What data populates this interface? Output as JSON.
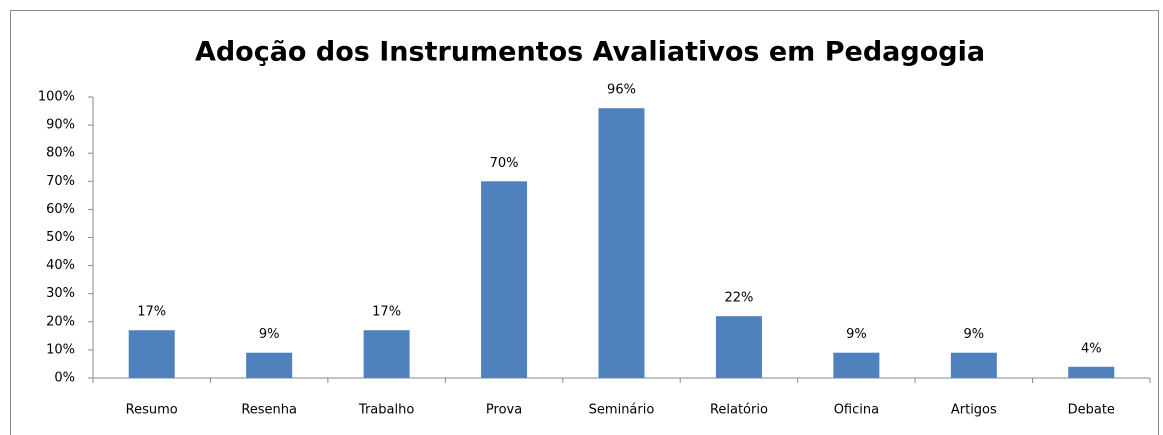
{
  "chart_data": {
    "type": "bar",
    "title": "Adoção dos Instrumentos Avaliativos em Pedagogia",
    "categories": [
      "Resumo",
      "Resenha",
      "Trabalho",
      "Prova",
      "Seminário",
      "Relatório",
      "Oficina",
      "Artigos",
      "Debate"
    ],
    "values": [
      17,
      9,
      17,
      70,
      96,
      22,
      9,
      9,
      4
    ],
    "value_labels": [
      "17%",
      "9%",
      "17%",
      "70%",
      "96%",
      "22%",
      "9%",
      "9%",
      "4%"
    ],
    "color": "#4f81bd",
    "ylim": [
      0,
      100
    ],
    "yticks": [
      {
        "value": 0,
        "label": "0%"
      },
      {
        "value": 10,
        "label": "10%"
      },
      {
        "value": 20,
        "label": "20%"
      },
      {
        "value": 30,
        "label": "30%"
      },
      {
        "value": 40,
        "label": "40%"
      },
      {
        "value": 50,
        "label": "50%"
      },
      {
        "value": 60,
        "label": "60%"
      },
      {
        "value": 70,
        "label": "70%"
      },
      {
        "value": 80,
        "label": "80%"
      },
      {
        "value": 90,
        "label": "90%"
      },
      {
        "value": 100,
        "label": "100%"
      }
    ],
    "grid": false
  }
}
